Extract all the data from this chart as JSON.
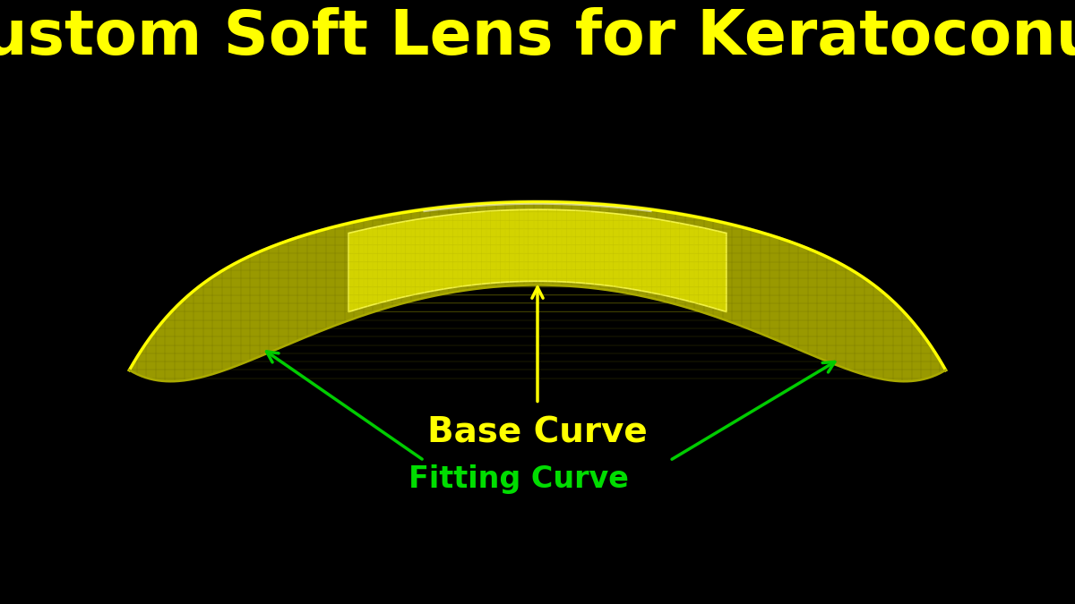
{
  "title": "Custom Soft Lens for Keratoconus",
  "title_color": "#FFFF00",
  "title_fontsize": 50,
  "background_color": "#000000",
  "lens_bright_color": "#FFFF00",
  "lens_mid_color": "#CCCC00",
  "lens_dark_color": "#888800",
  "base_curve_label": "Base Curve",
  "base_curve_color": "#FFFF00",
  "fitting_curve_label": "Fitting Curve",
  "fitting_curve_color": "#00DD00",
  "arrow_base_color": "#FFFF00",
  "arrow_fitting_color": "#00CC00",
  "figwidth": 12.0,
  "figheight": 6.75,
  "dpi": 100
}
